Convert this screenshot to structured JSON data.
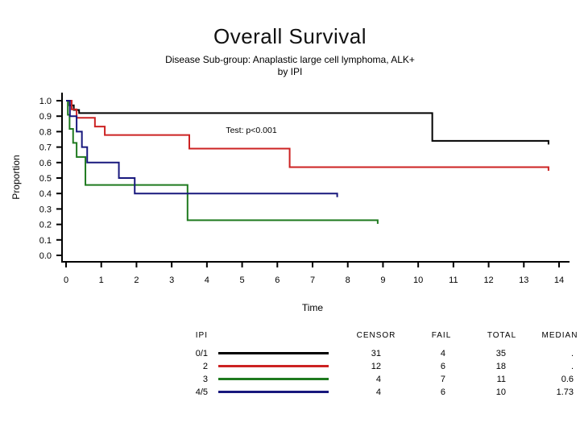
{
  "title": "Overall Survival",
  "subtitle_line1": "Disease Sub-group: Anaplastic large cell lymphoma, ALK+",
  "subtitle_line2": "by IPI",
  "chart_data": {
    "type": "line",
    "subtype": "kaplan-meier-step",
    "title": "Overall Survival",
    "xlabel": "Time",
    "ylabel": "Proportion",
    "xlim": [
      0,
      14
    ],
    "ylim": [
      0.0,
      1.0
    ],
    "grid": false,
    "legend_position": "table-below",
    "annotation": "Test: p<0.001",
    "x_ticks": [
      0,
      1,
      2,
      3,
      4,
      5,
      6,
      7,
      8,
      9,
      10,
      11,
      12,
      13,
      14
    ],
    "y_ticks": [
      [
        "1.0",
        1.0
      ],
      [
        "0.9",
        0.9
      ],
      [
        "0.8",
        0.8
      ],
      [
        "0.7",
        0.7
      ],
      [
        "0.6",
        0.6
      ],
      [
        "0.5",
        0.5
      ],
      [
        "0.4",
        0.4
      ],
      [
        "0.3",
        0.3
      ],
      [
        "0.2",
        0.2
      ],
      [
        "0.1",
        0.1
      ],
      [
        "0.0",
        0.0
      ]
    ],
    "series": [
      {
        "name": "IPI 0/1",
        "color": "#000000",
        "start": [
          0,
          1.0
        ],
        "steps": [
          [
            0.1,
            0.97
          ],
          [
            0.22,
            0.94
          ],
          [
            0.37,
            0.92
          ],
          [
            10.4,
            0.74
          ]
        ],
        "end": 13.7
      },
      {
        "name": "IPI 2",
        "color": "#cc2222",
        "start": [
          0,
          1.0
        ],
        "steps": [
          [
            0.16,
            0.944
          ],
          [
            0.3,
            0.889
          ],
          [
            0.82,
            0.833
          ],
          [
            1.1,
            0.778
          ],
          [
            3.5,
            0.69
          ],
          [
            6.35,
            0.57
          ]
        ],
        "end": 13.7
      },
      {
        "name": "IPI 3",
        "color": "#1f7a1f",
        "start": [
          0,
          1.0
        ],
        "steps": [
          [
            0.05,
            0.909
          ],
          [
            0.1,
            0.818
          ],
          [
            0.2,
            0.727
          ],
          [
            0.3,
            0.636
          ],
          [
            0.55,
            0.455
          ],
          [
            3.45,
            0.227
          ]
        ],
        "end": 8.85
      },
      {
        "name": "IPI 4/5",
        "color": "#18187d",
        "start": [
          0,
          1.0
        ],
        "steps": [
          [
            0.11,
            0.9
          ],
          [
            0.3,
            0.8
          ],
          [
            0.45,
            0.7
          ],
          [
            0.6,
            0.6
          ],
          [
            1.5,
            0.5
          ],
          [
            1.95,
            0.4
          ]
        ],
        "end": 7.7
      }
    ]
  },
  "legend_table": {
    "headers": [
      "IPI",
      "CENSOR",
      "FAIL",
      "TOTAL",
      "MEDIAN"
    ],
    "rows": [
      {
        "ipi": "0/1",
        "color": "#000000",
        "censor": "31",
        "fail": "4",
        "total": "35",
        "median": "."
      },
      {
        "ipi": "2",
        "color": "#cc2222",
        "censor": "12",
        "fail": "6",
        "total": "18",
        "median": "."
      },
      {
        "ipi": "3",
        "color": "#1f7a1f",
        "censor": "4",
        "fail": "7",
        "total": "11",
        "median": "0.6"
      },
      {
        "ipi": "4/5",
        "color": "#18187d",
        "censor": "4",
        "fail": "6",
        "total": "10",
        "median": "1.73"
      }
    ]
  }
}
